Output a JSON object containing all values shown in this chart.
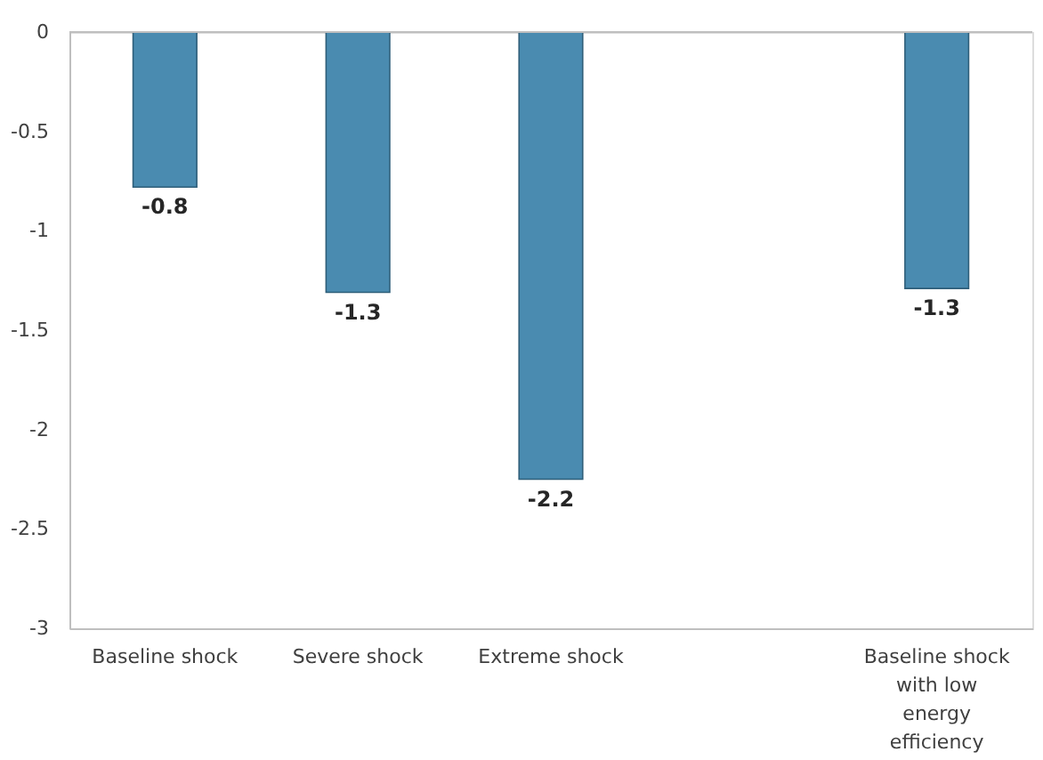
{
  "chart_data": {
    "type": "bar",
    "categories": [
      "Baseline shock",
      "Severe shock",
      "Extreme shock",
      null,
      "Baseline shock with low energy efficiency"
    ],
    "series": [
      {
        "color": "#4a8bb0",
        "values": [
          -0.78,
          -1.31,
          -2.25,
          null,
          -1.29
        ]
      }
    ],
    "value_labels": [
      "-0.8",
      "-1.3",
      "-2.2",
      null,
      "-1.3"
    ],
    "ylim": [
      -3,
      0
    ],
    "yticks": [
      -3,
      -2.5,
      -2,
      -1.5,
      -1,
      -0.5,
      0
    ],
    "grid": false
  }
}
